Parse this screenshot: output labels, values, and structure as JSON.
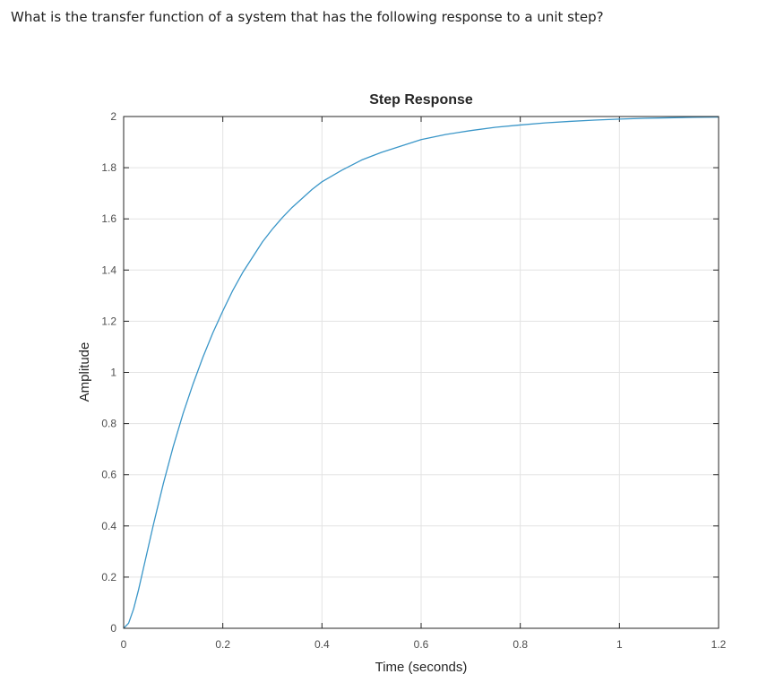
{
  "question": {
    "text": "What is the transfer function of a system that has the following response to a unit step?"
  },
  "chart_data": {
    "type": "line",
    "title": "Step Response",
    "xlabel": "Time (seconds)",
    "ylabel": "Amplitude",
    "xlim": [
      0,
      1.2
    ],
    "ylim": [
      0,
      2
    ],
    "xticks": [
      0,
      0.2,
      0.4,
      0.6,
      0.8,
      1,
      1.2
    ],
    "xtick_labels": [
      "0",
      "0.2",
      "0.4",
      "0.6",
      "0.8",
      "1",
      "1.2"
    ],
    "yticks": [
      0,
      0.2,
      0.4,
      0.6,
      0.8,
      1,
      1.2,
      1.4,
      1.6,
      1.8,
      2
    ],
    "ytick_labels": [
      "0",
      "0.2",
      "0.4",
      "0.6",
      "0.8",
      "1",
      "1.2",
      "1.4",
      "1.6",
      "1.8",
      "2"
    ],
    "grid": true,
    "line_color": "#3a96c8",
    "series": [
      {
        "x": [
          0,
          0.01,
          0.02,
          0.03,
          0.04,
          0.05,
          0.06,
          0.08,
          0.1,
          0.12,
          0.14,
          0.16,
          0.18,
          0.2,
          0.22,
          0.24,
          0.26,
          0.28,
          0.3,
          0.32,
          0.34,
          0.36,
          0.38,
          0.4,
          0.44,
          0.48,
          0.52,
          0.56,
          0.6,
          0.65,
          0.7,
          0.75,
          0.8,
          0.85,
          0.9,
          0.95,
          1.0,
          1.05,
          1.1,
          1.15,
          1.2
        ],
        "values": [
          0,
          0.02,
          0.075,
          0.15,
          0.235,
          0.32,
          0.405,
          0.565,
          0.71,
          0.84,
          0.955,
          1.06,
          1.155,
          1.24,
          1.32,
          1.39,
          1.45,
          1.51,
          1.56,
          1.605,
          1.645,
          1.68,
          1.715,
          1.745,
          1.79,
          1.83,
          1.86,
          1.885,
          1.91,
          1.93,
          1.945,
          1.958,
          1.967,
          1.975,
          1.981,
          1.986,
          1.99,
          1.993,
          1.995,
          1.997,
          1.998
        ]
      }
    ]
  }
}
